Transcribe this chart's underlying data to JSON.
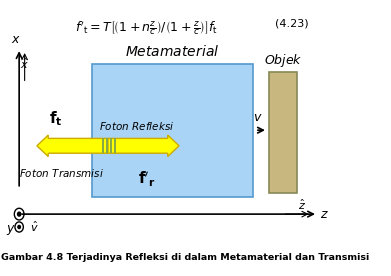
{
  "title_formula": "f'_t = T\\left[\\left(1+n\\frac{z}{c}\\right)/\\left(1+\\frac{z}{c}\\right)\\right] f_t",
  "eq_number": "(4.23)",
  "metamaterial_label": "Metamaterial",
  "objek_label": "Objek",
  "foton_refleksi_label": "Foton Refleksi",
  "foton_transmisi_label": "Foton Transmisi",
  "ft_label": "$\\mathbf{f_t}$",
  "fpr_label": "$\\mathbf{f'_r}$",
  "v_arrow_label": "$v$",
  "x_axis_label": "$x$",
  "z_axis_label": "$z$",
  "xhat_label": "$\\hat{x}$",
  "zhat_label": "$\\hat{z}$",
  "vhat_label": "$\\hat{v}$",
  "y_label": "$y$",
  "caption": "Gambar 4.8 Terjadinya Refleksi di dalam Metamaterial dan Transmisi",
  "bg_color": "#ffffff",
  "meta_box_color": "#aad4f5",
  "meta_box_edge": "#5599cc",
  "objek_box_color": "#c8b880",
  "objek_box_edge": "#888855",
  "arrow_yellow": "#ffff00",
  "arrow_outline": "#ccaa00",
  "arrow_green_stripe": "#88aa44"
}
